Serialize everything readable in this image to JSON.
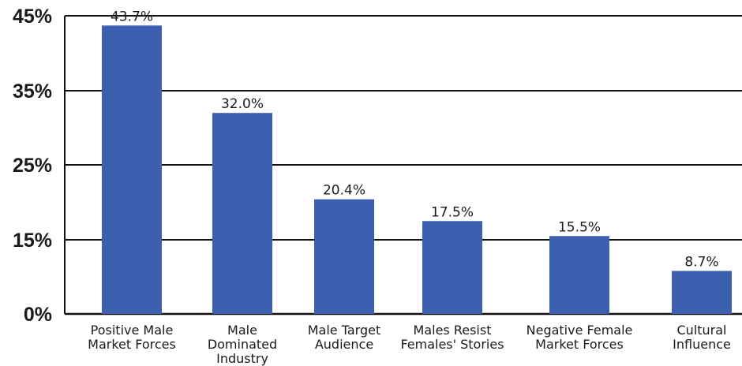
{
  "chart_data": {
    "type": "bar",
    "categories": [
      [
        "Positive Male",
        "Market Forces"
      ],
      [
        "Male",
        "Dominated",
        "Industry"
      ],
      [
        "Male Target",
        "Audience"
      ],
      [
        "Males Resist",
        "Females' Stories"
      ],
      [
        "Negative Female",
        "Market Forces"
      ],
      [
        "Cultural",
        "Influence"
      ]
    ],
    "values": [
      43.7,
      32.0,
      20.4,
      17.5,
      15.5,
      8.7
    ],
    "value_labels": [
      "43.7%",
      "32.0%",
      "20.4%",
      "17.5%",
      "15.5%",
      "8.7%"
    ],
    "y_ticks": [
      {
        "label": "0%",
        "value": 0
      },
      {
        "label": "15%",
        "value": 15
      },
      {
        "label": "25%",
        "value": 25
      },
      {
        "label": "35%",
        "value": 35
      },
      {
        "label": "45%",
        "value": 45
      }
    ],
    "ylim": [
      0,
      45
    ],
    "grid": true,
    "bar_color": "#3d5fb0",
    "grid_color": "#111111"
  }
}
